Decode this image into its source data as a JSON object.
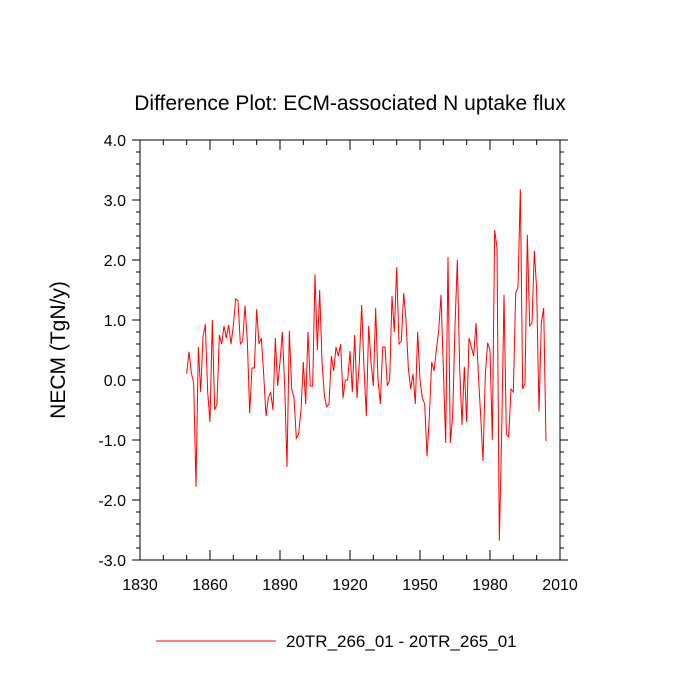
{
  "chart_data": {
    "type": "line",
    "title": "Difference Plot: ECM-associated N uptake flux",
    "xlabel": "",
    "ylabel": "NECM  (TgN/y)",
    "xlim": [
      1830,
      2010
    ],
    "ylim": [
      -3.0,
      4.0
    ],
    "xticks": [
      1830,
      1860,
      1890,
      1920,
      1950,
      1980,
      2010
    ],
    "yticks": [
      -3.0,
      -2.0,
      -1.0,
      0.0,
      1.0,
      2.0,
      3.0,
      4.0
    ],
    "ytick_labels": [
      "-3.0",
      "-2.0",
      "-1.0",
      "0.0",
      "1.0",
      "2.0",
      "3.0",
      "4.0"
    ],
    "grid": false,
    "legend_position": "bottom",
    "series": [
      {
        "name": "20TR_266_01 - 20TR_265_01",
        "color": "#ff0000",
        "x_start": 1850,
        "x_step": 1,
        "values": [
          0.1,
          0.47,
          0.12,
          -0.05,
          -1.78,
          0.55,
          -0.2,
          0.72,
          0.93,
          -0.2,
          -0.7,
          1.0,
          -0.5,
          -0.4,
          0.75,
          0.6,
          0.9,
          0.7,
          0.92,
          0.6,
          0.9,
          1.35,
          1.32,
          0.6,
          0.65,
          1.24,
          0.65,
          -0.55,
          0.2,
          0.2,
          1.18,
          0.6,
          0.7,
          0.1,
          -0.6,
          -0.3,
          -0.2,
          -0.5,
          0.7,
          -0.1,
          0.3,
          0.8,
          -0.1,
          -1.45,
          0.82,
          -0.15,
          -0.3,
          -0.97,
          -0.9,
          -0.5,
          0.3,
          -0.4,
          0.8,
          -0.1,
          -0.1,
          1.76,
          0.5,
          1.5,
          0.3,
          -0.25,
          -0.45,
          -0.4,
          0.4,
          0.15,
          0.55,
          0.4,
          0.6,
          -0.3,
          0.0,
          0.0,
          0.48,
          -0.2,
          0.75,
          -0.3,
          0.3,
          1.25,
          0.2,
          -0.6,
          0.9,
          0.3,
          -0.1,
          1.2,
          0.0,
          -0.4,
          0.55,
          0.55,
          -0.1,
          0.0,
          1.4,
          0.8,
          1.88,
          0.6,
          0.65,
          1.45,
          1.0,
          0.2,
          -0.15,
          0.1,
          -0.4,
          0.8,
          0.0,
          -0.3,
          -0.4,
          -1.27,
          -0.6,
          0.3,
          0.15,
          0.5,
          0.82,
          1.42,
          0.2,
          -1.05,
          2.05,
          -1.05,
          -0.6,
          0.9,
          2.0,
          0.2,
          -0.75,
          0.22,
          -0.7,
          0.7,
          0.55,
          0.4,
          0.95,
          0.1,
          -0.6,
          -1.35,
          0.1,
          0.62,
          0.5,
          -1.0,
          2.5,
          2.2,
          -2.68,
          -0.9,
          1.42,
          -0.9,
          -0.95,
          -0.15,
          -0.2,
          1.45,
          1.55,
          3.18,
          -0.15,
          -0.05,
          2.42,
          0.9,
          0.95,
          2.15,
          1.5,
          -0.52,
          0.95,
          1.2,
          -1.02
        ]
      }
    ]
  }
}
